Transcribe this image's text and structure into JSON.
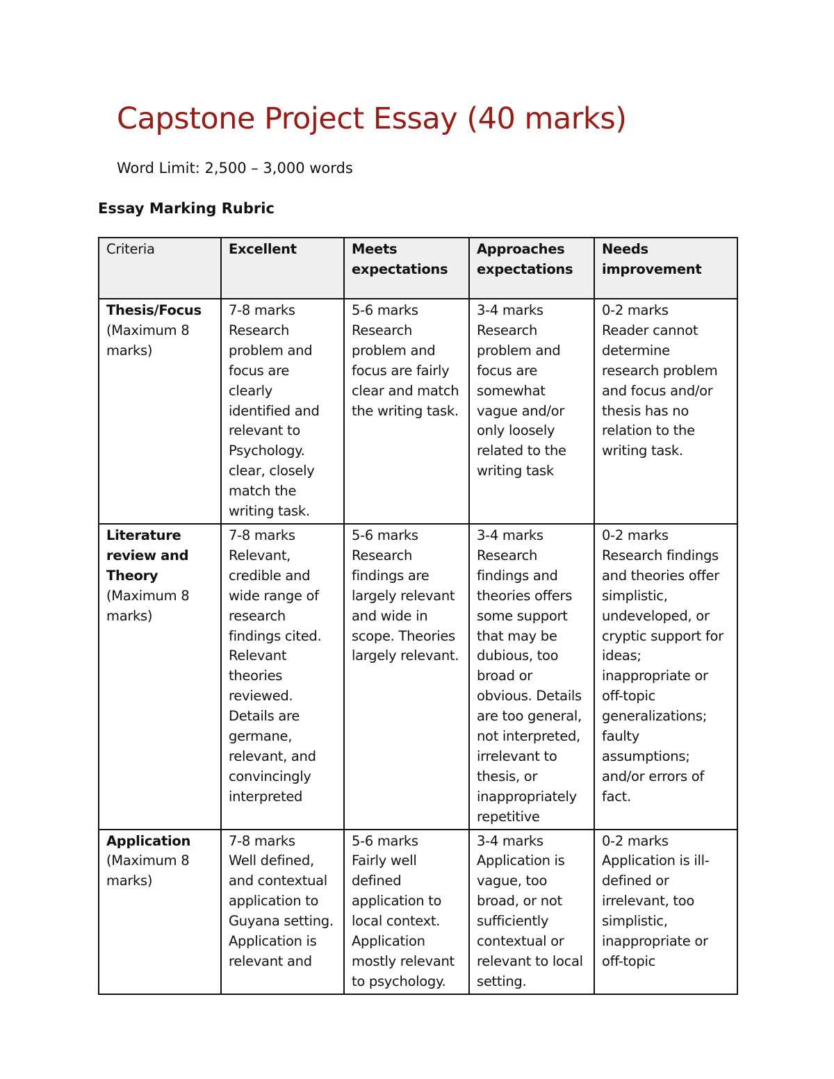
{
  "title": "Capstone Project Essay (40 marks)",
  "word_limit": "Word Limit: 2,500 – 3,000 words",
  "rubric_heading": "Essay Marking Rubric",
  "colors": {
    "title": "#9b1a12",
    "header_bg": "#efefef"
  },
  "table": {
    "headers": [
      "Criteria",
      "Excellent",
      "Meets\nexpectations",
      "Approaches\nexpectations",
      "Needs\nimprovement"
    ],
    "rows": [
      {
        "criterion": "Thesis/Focus",
        "criterion_note": "(Maximum 8\nmarks)",
        "cells": [
          "7-8 marks\nResearch\nproblem and\nfocus are\nclearly\nidentified and\nrelevant to\nPsychology.\nclear, closely\nmatch the\nwriting task.",
          "5-6 marks\nResearch\nproblem and\nfocus are fairly\nclear and match\nthe writing task.",
          "3-4 marks\nResearch\nproblem and\nfocus are\nsomewhat\nvague and/or\nonly loosely\nrelated to the\nwriting task",
          "0-2 marks\nReader cannot\ndetermine\nresearch problem\nand focus and/or\nthesis has no\nrelation to the\nwriting task."
        ]
      },
      {
        "criterion": "Literature\nreview and\nTheory",
        "criterion_note": "(Maximum 8\nmarks)",
        "cells": [
          "7-8 marks\nRelevant,\ncredible and\nwide range of\nresearch\nfindings cited.\nRelevant\ntheories\nreviewed.\nDetails are\ngermane,\nrelevant, and\nconvincingly\ninterpreted",
          "5-6 marks\nResearch\nfindings are\nlargely relevant\nand wide in\nscope. Theories\nlargely relevant.",
          "3-4 marks\nResearch\nfindings and\ntheories offers\nsome support\nthat may be\ndubious, too\nbroad or\nobvious. Details\nare too general,\nnot interpreted,\nirrelevant to\nthesis, or\ninappropriately\nrepetitive",
          "0-2 marks\nResearch findings\nand theories offer\nsimplistic,\nundeveloped, or\ncryptic support for\nideas;\ninappropriate or\noff-topic\ngeneralizations;\nfaulty\nassumptions;\nand/or errors of\nfact."
        ]
      },
      {
        "criterion": "Application",
        "criterion_note": "(Maximum 8\nmarks)",
        "cells": [
          "7-8 marks\nWell defined,\nand contextual\napplication to\nGuyana setting.\nApplication is\nrelevant and",
          "5-6 marks\nFairly well\ndefined\napplication to\nlocal context.\nApplication\nmostly relevant\nto psychology.",
          "3-4 marks\nApplication is\nvague, too\nbroad, or not\nsufficiently\ncontextual or\nrelevant to local\nsetting.",
          "0-2 marks\nApplication is ill-\ndefined or\nirrelevant, too\nsimplistic,\ninappropriate or\noff-topic"
        ]
      }
    ]
  }
}
